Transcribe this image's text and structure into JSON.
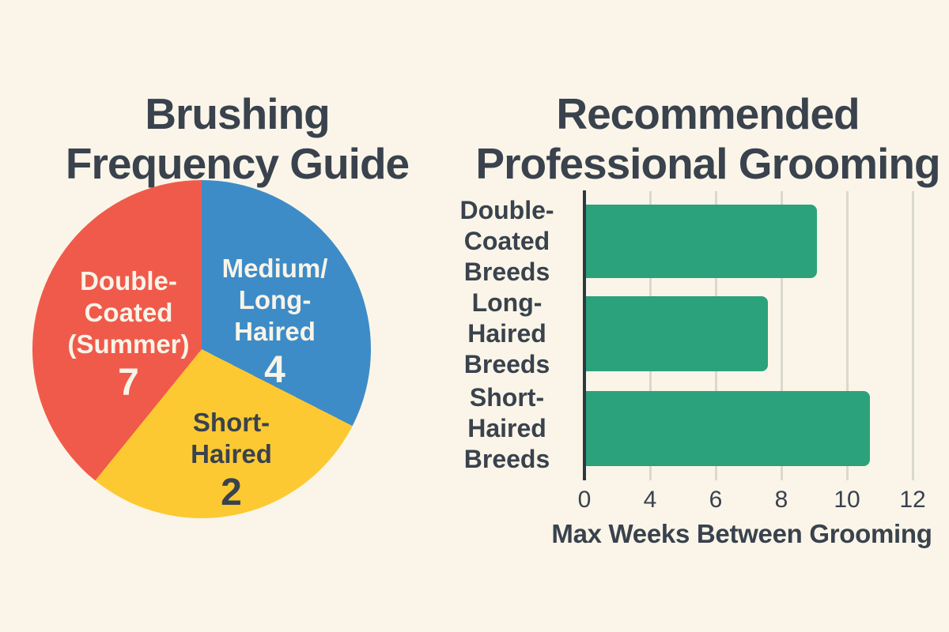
{
  "page": {
    "background": "#faf5e8",
    "text_color": "#39424d",
    "light_text_color": "#f8f4e8"
  },
  "pie_panel": {
    "title_lines": [
      "Brushing",
      "Frequency Guide"
    ],
    "labels": {
      "double_coated": {
        "lines": [
          "Double-",
          "Coated",
          "(Summer)"
        ],
        "value": "7"
      },
      "medium_long": {
        "lines": [
          "Medium/",
          "Long-",
          "Haired"
        ],
        "value": "4"
      },
      "short_haired": {
        "lines": [
          "Short-",
          "Haired"
        ],
        "value": "2"
      }
    }
  },
  "bar_panel": {
    "title_lines": [
      "Recommended",
      "Professional Grooming"
    ],
    "labels": [
      {
        "lines": [
          "Double-",
          "Coated",
          "Breeds"
        ]
      },
      {
        "lines": [
          "Long-",
          "Haired",
          "Breeds"
        ]
      },
      {
        "lines": [
          "Short-",
          "Haired",
          "Breeds"
        ]
      }
    ],
    "ticks": [
      "0",
      "4",
      "6",
      "8",
      "10",
      "12"
    ],
    "xlabel": "Max Weeks Between Grooming"
  },
  "chart_data": [
    {
      "type": "pie",
      "title": "Brushing Frequency Guide",
      "slices": [
        {
          "label": "Medium/Long-Haired",
          "value": 4,
          "color": "#3d8cc7",
          "start_deg": 0,
          "end_deg": 117
        },
        {
          "label": "Short-Haired",
          "value": 2,
          "color": "#fcc933",
          "start_deg": 117,
          "end_deg": 219
        },
        {
          "label": "Double-Coated (Summer)",
          "value": 7,
          "color": "#f05a4b",
          "start_deg": 219,
          "end_deg": 360
        }
      ],
      "legend_position": "labels-inside-slices"
    },
    {
      "type": "bar",
      "orientation": "horizontal",
      "title": "Recommended Professional Grooming",
      "categories": [
        "Double-Coated Breeds",
        "Long-Haired Breeds",
        "Short-Haired Breeds"
      ],
      "values": [
        9,
        7.5,
        10.6
      ],
      "xlabel": "Max Weeks Between Grooming",
      "xtick_labels": [
        "0",
        "4",
        "6",
        "8",
        "10",
        "12"
      ],
      "bar_color": "#2ba27b",
      "axis_color": "#2f3741",
      "grid_color": "#dbd8ce",
      "grid": true
    }
  ]
}
